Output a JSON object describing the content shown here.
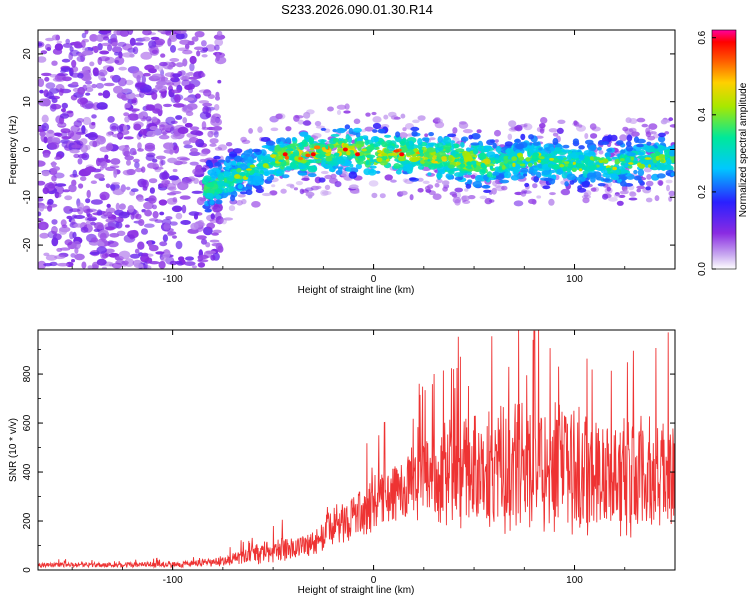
{
  "title": "S233.2026.090.01.30.R14",
  "chart_data": [
    {
      "type": "heatmap",
      "id": "spectrogram",
      "xlabel": "Height of straight line (km)",
      "ylabel": "Frequency (Hz)",
      "xlim": [
        -167,
        150
      ],
      "ylim": [
        -25,
        25
      ],
      "xticks": [
        -100,
        0,
        100
      ],
      "yticks": [
        -20,
        -10,
        0,
        10,
        20
      ],
      "colorbar": {
        "label": "Normalized spectral amplitude",
        "range": [
          0.0,
          0.62
        ],
        "ticks": [
          "0.0",
          "0.2",
          "0.4",
          "0.6"
        ],
        "tick_values": [
          0.0,
          0.2,
          0.4,
          0.6
        ]
      },
      "ridge": {
        "x": [
          -82,
          -70,
          -60,
          -50,
          -40,
          -30,
          -20,
          -10,
          0,
          20,
          40,
          60,
          80,
          100,
          120,
          145
        ],
        "y": [
          -8,
          -6,
          -4,
          -2,
          -1,
          -1,
          0,
          0,
          -1,
          -1,
          -2,
          -3,
          -2,
          -3,
          -3,
          -2
        ],
        "peak_amplitude": 0.62
      },
      "noise_region": {
        "x_start": -167,
        "x_end": -82
      },
      "colors": {
        "low": "#8a2be2",
        "mid": "#00c8ff",
        "high": "#ff0000"
      }
    },
    {
      "type": "line",
      "id": "snr",
      "xlabel": "Height of straight line (km)",
      "ylabel": "SNR (10 * v/v)",
      "xlim": [
        -167,
        150
      ],
      "ylim": [
        0,
        980
      ],
      "xticks": [
        -100,
        0,
        100
      ],
      "yticks": [
        0,
        200,
        400,
        600,
        800
      ],
      "series": [
        {
          "name": "SNR",
          "color": "#ee3333",
          "envelope_x": [
            -167,
            -100,
            -80,
            -70,
            -60,
            -50,
            -40,
            -30,
            -20,
            -10,
            0,
            10,
            20,
            30,
            40,
            60,
            80,
            100,
            120,
            150
          ],
          "envelope_mean": [
            20,
            22,
            30,
            45,
            60,
            80,
            90,
            110,
            180,
            220,
            270,
            310,
            350,
            390,
            400,
            410,
            420,
            410,
            380,
            380
          ],
          "envelope_spread": [
            10,
            12,
            18,
            25,
            40,
            50,
            55,
            60,
            80,
            100,
            120,
            140,
            160,
            190,
            230,
            260,
            280,
            270,
            250,
            250
          ],
          "peak": [
            80,
            975
          ]
        }
      ]
    }
  ]
}
